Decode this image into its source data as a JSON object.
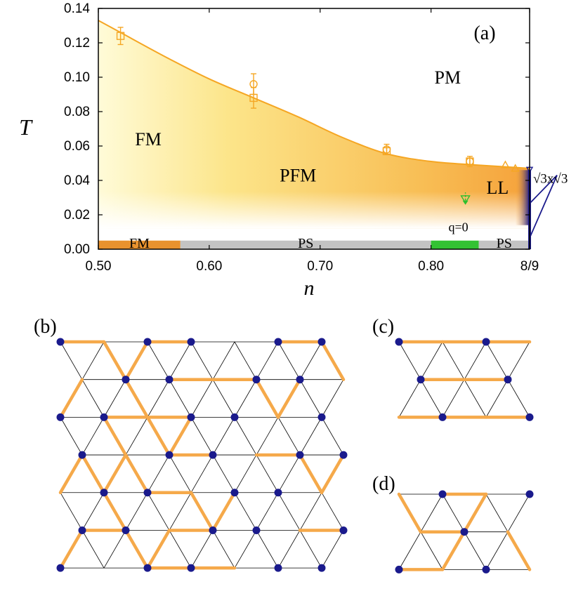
{
  "chart_data": {
    "type": "line",
    "panel_label": "(a)",
    "xlabel": "n",
    "ylabel": "T",
    "xlim": [
      0.5,
      0.8889
    ],
    "ylim": [
      0.0,
      0.14
    ],
    "x_ticks": [
      {
        "value": 0.5,
        "label": "0.50"
      },
      {
        "value": 0.6,
        "label": "0.60"
      },
      {
        "value": 0.7,
        "label": "0.70"
      },
      {
        "value": 0.8,
        "label": "0.80"
      },
      {
        "value": 0.8889,
        "label": "8/9"
      }
    ],
    "y_ticks": [
      {
        "value": 0.0,
        "label": "0.00"
      },
      {
        "value": 0.02,
        "label": "0.02"
      },
      {
        "value": 0.04,
        "label": "0.04"
      },
      {
        "value": 0.06,
        "label": "0.06"
      },
      {
        "value": 0.08,
        "label": "0.08"
      },
      {
        "value": 0.1,
        "label": "0.10"
      },
      {
        "value": 0.12,
        "label": "0.12"
      },
      {
        "value": 0.14,
        "label": "0.14"
      }
    ],
    "boundary_curve": {
      "x": [
        0.5,
        0.52,
        0.56,
        0.6,
        0.64,
        0.68,
        0.72,
        0.76,
        0.8,
        0.84,
        0.8889
      ],
      "y": [
        0.133,
        0.126,
        0.112,
        0.099,
        0.088,
        0.077,
        0.065,
        0.0555,
        0.051,
        0.049,
        0.047
      ],
      "color": "#F5A623"
    },
    "data_points": [
      {
        "x": 0.52,
        "y": 0.124,
        "err": 0.005,
        "marker": "square"
      },
      {
        "x": 0.64,
        "y": 0.096,
        "err": 0.006,
        "marker": "circle"
      },
      {
        "x": 0.64,
        "y": 0.088,
        "err": 0.006,
        "marker": "square"
      },
      {
        "x": 0.76,
        "y": 0.058,
        "err": 0.003,
        "marker": "circle"
      },
      {
        "x": 0.76,
        "y": 0.057,
        "err": 0.002,
        "marker": "square"
      },
      {
        "x": 0.835,
        "y": 0.051,
        "err": 0.003,
        "marker": "square"
      },
      {
        "x": 0.835,
        "y": 0.051,
        "err": 0.002,
        "marker": "circle"
      },
      {
        "x": 0.867,
        "y": 0.049,
        "err": 0.0,
        "marker": "triangle"
      },
      {
        "x": 0.876,
        "y": 0.047,
        "err": 0.0,
        "marker": "triangle"
      }
    ],
    "qzero_point": {
      "x": 0.831,
      "y": 0.029,
      "err": 0.004,
      "color": "#2DBE2D"
    },
    "sqrt3_point": {
      "x": 0.8889,
      "y": 0.046
    },
    "phase_labels": [
      {
        "text": "PM",
        "x": 0.815,
        "y": 0.1
      },
      {
        "text": "FM",
        "x": 0.545,
        "y": 0.064
      },
      {
        "text": "PFM",
        "x": 0.68,
        "y": 0.043
      },
      {
        "text": "LL",
        "x": 0.86,
        "y": 0.036
      }
    ],
    "bottom_bar": [
      {
        "label": "FM",
        "x0": 0.5,
        "x1": 0.574,
        "color": "#E8922E"
      },
      {
        "label": "PS",
        "x0": 0.574,
        "x1": 0.8,
        "color": "#C3C3C3"
      },
      {
        "label": "",
        "x0": 0.8,
        "x1": 0.843,
        "color": "#33C233"
      },
      {
        "label": "PS",
        "x0": 0.843,
        "x1": 0.8889,
        "color": "#C3C3C3"
      }
    ],
    "q0_label": "q=0",
    "sqrt3_label": "√3x√3"
  },
  "panels": {
    "b": {
      "label": "(b)"
    },
    "c": {
      "label": "(c)"
    },
    "d": {
      "label": "(d)"
    }
  },
  "colors": {
    "bond": "#F5A94A",
    "site": "#1A1A8C",
    "lattice": "#000000",
    "ll_edge": "#1A1A8C"
  }
}
